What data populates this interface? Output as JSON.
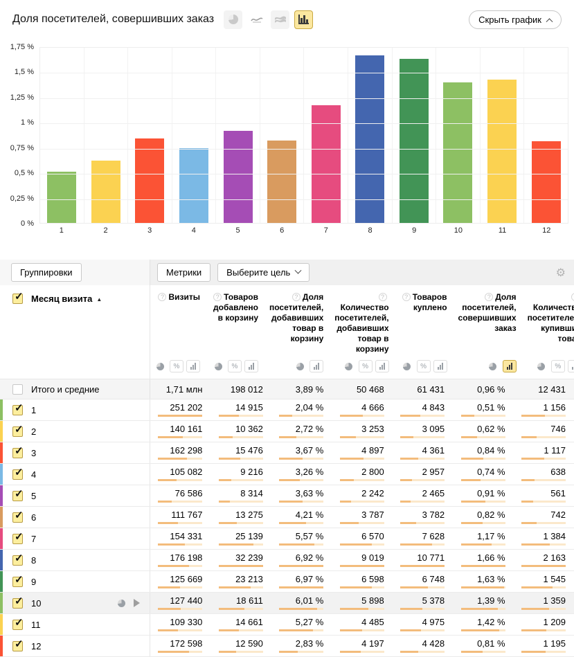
{
  "page": {
    "title": "Доля посетителей, совершивших заказ",
    "hide_chart_label": "Скрыть график"
  },
  "chart_toolbar": {
    "icons": [
      {
        "name": "pie-chart-icon",
        "selected": false
      },
      {
        "name": "line-chart-icon",
        "selected": false
      },
      {
        "name": "stacked-area-icon",
        "selected": false
      },
      {
        "name": "column-chart-icon",
        "selected": true
      }
    ]
  },
  "chart_data": {
    "type": "bar",
    "title": "Доля посетителей, совершивших заказ",
    "categories": [
      "1",
      "2",
      "3",
      "4",
      "5",
      "6",
      "7",
      "8",
      "9",
      "10",
      "11",
      "12"
    ],
    "values": [
      0.51,
      0.62,
      0.84,
      0.74,
      0.91,
      0.82,
      1.17,
      1.66,
      1.63,
      1.39,
      1.42,
      0.81
    ],
    "bar_colors": [
      "#8DC063",
      "#FBD251",
      "#FB5335",
      "#7BB9E5",
      "#A54DB5",
      "#D99B5F",
      "#E64C7F",
      "#4466AF",
      "#429456",
      "#8DC063",
      "#FBD251",
      "#FB5335"
    ],
    "xlabel": "",
    "ylabel": "",
    "unit": "%",
    "ylim": [
      0,
      1.75
    ],
    "grid": true,
    "legend": false,
    "y_ticks": [
      "1,75 %",
      "1,5 %",
      "1,25 %",
      "1 %",
      "0,75 %",
      "0,5 %",
      "0,25 %",
      "0 %"
    ]
  },
  "controls": {
    "groupings": "Группировки",
    "metrics": "Метрики",
    "goal": "Выберите цель",
    "gear": "⚙"
  },
  "table": {
    "label_header": {
      "title": "Месяц визита",
      "sort_arrow": "▲"
    },
    "columns": [
      {
        "label": "Визиты",
        "toggles": [
          "pie",
          "percent",
          "bar"
        ],
        "selected": null
      },
      {
        "label": "Товаров добавлено в корзину",
        "toggles": [
          "pie",
          "percent",
          "bar"
        ],
        "selected": null
      },
      {
        "label": "Доля посетителей, добавивших товар в корзину",
        "toggles": [
          "pie",
          "bar"
        ],
        "selected": null
      },
      {
        "label": "Количество посетителей, добавивших товар в корзину",
        "toggles": [
          "pie",
          "percent",
          "bar"
        ],
        "selected": null
      },
      {
        "label": "Товаров куплено",
        "toggles": [
          "pie",
          "percent",
          "bar"
        ],
        "selected": null
      },
      {
        "label": "Доля посетителей, совершивших заказ",
        "toggles": [
          "pie",
          "bar"
        ],
        "selected": "bar"
      },
      {
        "label": "Количество посетителей, купивших товар",
        "toggles": [
          "pie",
          "percent",
          "bar"
        ],
        "selected": null
      }
    ],
    "totals": {
      "label": "Итого и средние",
      "values": [
        "1,71 млн",
        "198 012",
        "3,89 %",
        "50 468",
        "61 431",
        "0,96 %",
        "12 431"
      ]
    },
    "rows": [
      {
        "label": "1",
        "color": "#8DC063",
        "checked": true,
        "values": [
          "251 202",
          "14 915",
          "2,04 %",
          "4 666",
          "4 843",
          "0,51 %",
          "1 156"
        ],
        "fills": [
          1.0,
          0.46,
          0.29,
          0.52,
          0.45,
          0.31,
          0.53
        ]
      },
      {
        "label": "2",
        "color": "#FBD251",
        "checked": true,
        "values": [
          "140 161",
          "10 362",
          "2,72 %",
          "3 253",
          "3 095",
          "0,62 %",
          "746"
        ],
        "fills": [
          0.56,
          0.32,
          0.39,
          0.36,
          0.29,
          0.37,
          0.34
        ]
      },
      {
        "label": "3",
        "color": "#FB5335",
        "checked": true,
        "values": [
          "162 298",
          "15 476",
          "3,67 %",
          "4 897",
          "4 361",
          "0,84 %",
          "1 117"
        ],
        "fills": [
          0.65,
          0.48,
          0.53,
          0.54,
          0.4,
          0.51,
          0.52
        ]
      },
      {
        "label": "4",
        "color": "#7BB9E5",
        "checked": true,
        "values": [
          "105 082",
          "9 216",
          "3,26 %",
          "2 800",
          "2 957",
          "0,74 %",
          "638"
        ],
        "fills": [
          0.42,
          0.29,
          0.47,
          0.31,
          0.27,
          0.45,
          0.29
        ]
      },
      {
        "label": "5",
        "color": "#A54DB5",
        "checked": true,
        "values": [
          "76 586",
          "8 314",
          "3,63 %",
          "2 242",
          "2 465",
          "0,91 %",
          "561"
        ],
        "fills": [
          0.3,
          0.26,
          0.52,
          0.25,
          0.23,
          0.55,
          0.26
        ]
      },
      {
        "label": "6",
        "color": "#D99B5F",
        "checked": true,
        "values": [
          "111 767",
          "13 275",
          "4,21 %",
          "3 787",
          "3 782",
          "0,82 %",
          "742"
        ],
        "fills": [
          0.44,
          0.41,
          0.6,
          0.42,
          0.35,
          0.49,
          0.34
        ]
      },
      {
        "label": "7",
        "color": "#E64C7F",
        "checked": true,
        "values": [
          "154 331",
          "25 139",
          "5,57 %",
          "6 570",
          "7 628",
          "1,17 %",
          "1 384"
        ],
        "fills": [
          0.61,
          0.78,
          0.8,
          0.73,
          0.71,
          0.7,
          0.64
        ]
      },
      {
        "label": "8",
        "color": "#4466AF",
        "checked": true,
        "values": [
          "176 198",
          "32 239",
          "6,92 %",
          "9 019",
          "10 771",
          "1,66 %",
          "2 163"
        ],
        "fills": [
          0.7,
          1.0,
          0.99,
          1.0,
          1.0,
          1.0,
          1.0
        ]
      },
      {
        "label": "9",
        "color": "#429456",
        "checked": true,
        "values": [
          "125 669",
          "23 213",
          "6,97 %",
          "6 598",
          "6 748",
          "1,63 %",
          "1 545"
        ],
        "fills": [
          0.5,
          0.72,
          1.0,
          0.73,
          0.63,
          0.98,
          0.71
        ]
      },
      {
        "label": "10",
        "color": "#8DC063",
        "checked": true,
        "hover": true,
        "values": [
          "127 440",
          "18 611",
          "6,01 %",
          "5 898",
          "5 378",
          "1,39 %",
          "1 359"
        ],
        "fills": [
          0.51,
          0.58,
          0.86,
          0.65,
          0.5,
          0.84,
          0.63
        ]
      },
      {
        "label": "11",
        "color": "#FBD251",
        "checked": true,
        "values": [
          "109 330",
          "14 661",
          "5,27 %",
          "4 485",
          "4 975",
          "1,42 %",
          "1 209"
        ],
        "fills": [
          0.44,
          0.45,
          0.76,
          0.5,
          0.46,
          0.86,
          0.56
        ]
      },
      {
        "label": "12",
        "color": "#FB5335",
        "checked": true,
        "values": [
          "172 598",
          "12 590",
          "2,83 %",
          "4 197",
          "4 428",
          "0,81 %",
          "1 195"
        ],
        "fills": [
          0.69,
          0.39,
          0.41,
          0.47,
          0.41,
          0.49,
          0.55
        ]
      }
    ]
  }
}
